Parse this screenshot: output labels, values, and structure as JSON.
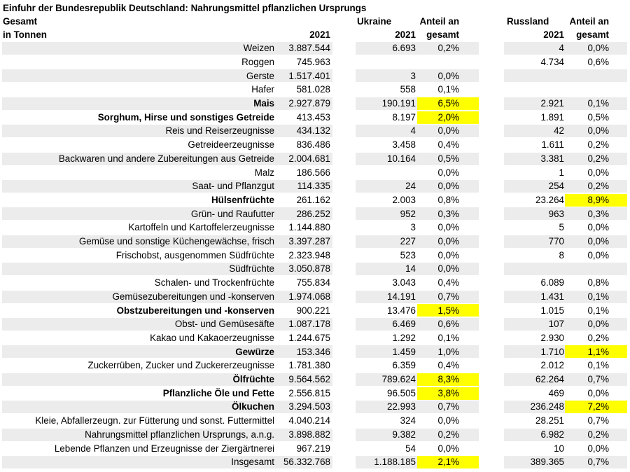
{
  "title": "Einfuhr der Bundesrepublik Deutschland: Nahrungsmittel pflanzlichen Ursprungs",
  "header": {
    "gesamt": "Gesamt",
    "unit": "in Tonnen",
    "year": "2021",
    "ukraine": "Ukraine",
    "russland": "Russland",
    "anteil_line1": "Anteil an",
    "anteil_line2": "gesamt"
  },
  "colors": {
    "stripe": "#ececec",
    "highlight": "#ffff00"
  },
  "chart_data": {
    "type": "table",
    "title": "Einfuhr der Bundesrepublik Deutschland: Nahrungsmittel pflanzlichen Ursprungs",
    "columns": [
      "",
      "Gesamt 2021",
      "Ukraine 2021",
      "Anteil an gesamt",
      "Russland 2021",
      "Anteil an gesamt"
    ],
    "rows": [
      {
        "label": "Weizen",
        "bold": false,
        "gesamt": "3.887.544",
        "ua": "6.693",
        "ua_pct": "0,2%",
        "ua_hl": false,
        "ru": "4",
        "ru_pct": "0,0%",
        "ru_hl": false
      },
      {
        "label": "Roggen",
        "bold": false,
        "gesamt": "745.963",
        "ua": "",
        "ua_pct": "",
        "ua_hl": false,
        "ru": "4.734",
        "ru_pct": "0,6%",
        "ru_hl": false
      },
      {
        "label": "Gerste",
        "bold": false,
        "gesamt": "1.517.401",
        "ua": "3",
        "ua_pct": "0,0%",
        "ua_hl": false,
        "ru": "",
        "ru_pct": "",
        "ru_hl": false
      },
      {
        "label": "Hafer",
        "bold": false,
        "gesamt": "581.028",
        "ua": "558",
        "ua_pct": "0,1%",
        "ua_hl": false,
        "ru": "",
        "ru_pct": "",
        "ru_hl": false
      },
      {
        "label": "Mais",
        "bold": true,
        "gesamt": "2.927.879",
        "ua": "190.191",
        "ua_pct": "6,5%",
        "ua_hl": true,
        "ru": "2.921",
        "ru_pct": "0,1%",
        "ru_hl": false
      },
      {
        "label": "Sorghum, Hirse und sonstiges Getreide",
        "bold": true,
        "gesamt": "413.453",
        "ua": "8.197",
        "ua_pct": "2,0%",
        "ua_hl": true,
        "ru": "1.891",
        "ru_pct": "0,5%",
        "ru_hl": false
      },
      {
        "label": "Reis und Reiserzeugnisse",
        "bold": false,
        "gesamt": "434.132",
        "ua": "4",
        "ua_pct": "0,0%",
        "ua_hl": false,
        "ru": "42",
        "ru_pct": "0,0%",
        "ru_hl": false
      },
      {
        "label": "Getreideerzeugnisse",
        "bold": false,
        "gesamt": "836.486",
        "ua": "3.458",
        "ua_pct": "0,4%",
        "ua_hl": false,
        "ru": "1.611",
        "ru_pct": "0,2%",
        "ru_hl": false
      },
      {
        "label": "Backwaren und andere Zubereitungen aus Getreide",
        "bold": false,
        "gesamt": "2.004.681",
        "ua": "10.164",
        "ua_pct": "0,5%",
        "ua_hl": false,
        "ru": "3.381",
        "ru_pct": "0,2%",
        "ru_hl": false
      },
      {
        "label": "Malz",
        "bold": false,
        "gesamt": "186.566",
        "ua": "",
        "ua_pct": "0,0%",
        "ua_hl": false,
        "ru": "1",
        "ru_pct": "0,0%",
        "ru_hl": false
      },
      {
        "label": "Saat- und Pflanzgut",
        "bold": false,
        "gesamt": "114.335",
        "ua": "24",
        "ua_pct": "0,0%",
        "ua_hl": false,
        "ru": "254",
        "ru_pct": "0,2%",
        "ru_hl": false
      },
      {
        "label": "Hülsenfrüchte",
        "bold": true,
        "gesamt": "261.162",
        "ua": "2.003",
        "ua_pct": "0,8%",
        "ua_hl": false,
        "ru": "23.264",
        "ru_pct": "8,9%",
        "ru_hl": true
      },
      {
        "label": "Grün- und Raufutter",
        "bold": false,
        "gesamt": "286.252",
        "ua": "952",
        "ua_pct": "0,3%",
        "ua_hl": false,
        "ru": "963",
        "ru_pct": "0,3%",
        "ru_hl": false
      },
      {
        "label": "Kartoffeln und Kartoffelerzeugnisse",
        "bold": false,
        "gesamt": "1.144.880",
        "ua": "3",
        "ua_pct": "0,0%",
        "ua_hl": false,
        "ru": "5",
        "ru_pct": "0,0%",
        "ru_hl": false
      },
      {
        "label": "Gemüse und sonstige Küchengewächse, frisch",
        "bold": false,
        "gesamt": "3.397.287",
        "ua": "227",
        "ua_pct": "0,0%",
        "ua_hl": false,
        "ru": "770",
        "ru_pct": "0,0%",
        "ru_hl": false
      },
      {
        "label": "Frischobst, ausgenommen Südfrüchte",
        "bold": false,
        "gesamt": "2.323.948",
        "ua": "523",
        "ua_pct": "0,0%",
        "ua_hl": false,
        "ru": "8",
        "ru_pct": "0,0%",
        "ru_hl": false
      },
      {
        "label": "Südfrüchte",
        "bold": false,
        "gesamt": "3.050.878",
        "ua": "14",
        "ua_pct": "0,0%",
        "ua_hl": false,
        "ru": "",
        "ru_pct": "",
        "ru_hl": false
      },
      {
        "label": "Schalen- und Trockenfrüchte",
        "bold": false,
        "gesamt": "755.834",
        "ua": "3.043",
        "ua_pct": "0,4%",
        "ua_hl": false,
        "ru": "6.089",
        "ru_pct": "0,8%",
        "ru_hl": false
      },
      {
        "label": "Gemüsezubereitungen und -konserven",
        "bold": false,
        "gesamt": "1.974.068",
        "ua": "14.191",
        "ua_pct": "0,7%",
        "ua_hl": false,
        "ru": "1.431",
        "ru_pct": "0,1%",
        "ru_hl": false
      },
      {
        "label": "Obstzubereitungen und -konserven",
        "bold": true,
        "gesamt": "900.221",
        "ua": "13.476",
        "ua_pct": "1,5%",
        "ua_hl": true,
        "ru": "1.015",
        "ru_pct": "0,1%",
        "ru_hl": false
      },
      {
        "label": "Obst- und Gemüsesäfte",
        "bold": false,
        "gesamt": "1.087.178",
        "ua": "6.469",
        "ua_pct": "0,6%",
        "ua_hl": false,
        "ru": "107",
        "ru_pct": "0,0%",
        "ru_hl": false
      },
      {
        "label": "Kakao und Kakaoerzeugnisse",
        "bold": false,
        "gesamt": "1.244.675",
        "ua": "1.292",
        "ua_pct": "0,1%",
        "ua_hl": false,
        "ru": "2.930",
        "ru_pct": "0,2%",
        "ru_hl": false
      },
      {
        "label": "Gewürze",
        "bold": true,
        "gesamt": "153.346",
        "ua": "1.459",
        "ua_pct": "1,0%",
        "ua_hl": false,
        "ru": "1.710",
        "ru_pct": "1,1%",
        "ru_hl": true
      },
      {
        "label": "Zuckerrüben, Zucker und Zuckererzeugnisse",
        "bold": false,
        "gesamt": "1.781.380",
        "ua": "6.359",
        "ua_pct": "0,4%",
        "ua_hl": false,
        "ru": "2.012",
        "ru_pct": "0,1%",
        "ru_hl": false
      },
      {
        "label": "Ölfrüchte",
        "bold": true,
        "gesamt": "9.564.562",
        "ua": "789.624",
        "ua_pct": "8,3%",
        "ua_hl": true,
        "ru": "62.264",
        "ru_pct": "0,7%",
        "ru_hl": false
      },
      {
        "label": "Pflanzliche Öle und Fette",
        "bold": true,
        "gesamt": "2.556.815",
        "ua": "96.505",
        "ua_pct": "3,8%",
        "ua_hl": true,
        "ru": "469",
        "ru_pct": "0,0%",
        "ru_hl": false
      },
      {
        "label": "Ölkuchen",
        "bold": true,
        "gesamt": "3.294.503",
        "ua": "22.993",
        "ua_pct": "0,7%",
        "ua_hl": false,
        "ru": "236.248",
        "ru_pct": "7,2%",
        "ru_hl": true
      },
      {
        "label": "Kleie, Abfallerzeugn. zur Fütterung und sonst. Futtermittel",
        "bold": false,
        "gesamt": "4.040.214",
        "ua": "324",
        "ua_pct": "0,0%",
        "ua_hl": false,
        "ru": "28.251",
        "ru_pct": "0,7%",
        "ru_hl": false
      },
      {
        "label": "Nahrungsmittel pflanzlichen Ursprungs, a.n.g.",
        "bold": false,
        "gesamt": "3.898.882",
        "ua": "9.382",
        "ua_pct": "0,2%",
        "ua_hl": false,
        "ru": "6.982",
        "ru_pct": "0,2%",
        "ru_hl": false
      },
      {
        "label": "Lebende Pflanzen und Erzeugnisse der Ziergärtnerei",
        "bold": false,
        "gesamt": "967.219",
        "ua": "54",
        "ua_pct": "0,0%",
        "ua_hl": false,
        "ru": "10",
        "ru_pct": "0,0%",
        "ru_hl": false
      },
      {
        "label": "Insgesamt",
        "bold": false,
        "gesamt": "56.332.768",
        "ua": "1.188.185",
        "ua_pct": "2,1%",
        "ua_hl": true,
        "ru": "389.365",
        "ru_pct": "0,7%",
        "ru_hl": false
      }
    ]
  }
}
